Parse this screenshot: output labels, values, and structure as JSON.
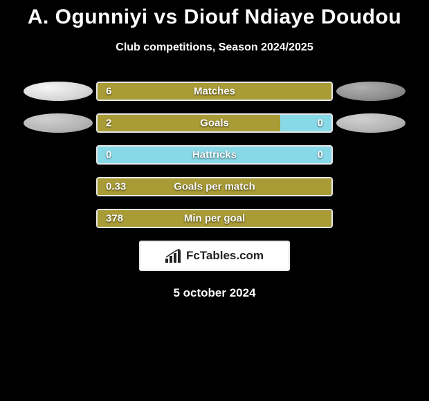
{
  "title": "A. Ogunniyi vs Diouf Ndiaye Doudou",
  "subtitle": "Club competitions, Season 2024/2025",
  "date": "5 october 2024",
  "logo_text": "FcTables.com",
  "colors": {
    "bar_primary": "#a99b35",
    "bar_secondary": "#87d9e8",
    "border": "#e8e8e8",
    "background": "#000000"
  },
  "stats": [
    {
      "label": "Matches",
      "left_value": "6",
      "right_value": "",
      "left_pct": 100,
      "right_pct": 0,
      "show_avatar_left": true,
      "show_avatar_right": true,
      "avatar_left_style": "light",
      "avatar_right_style": "dark"
    },
    {
      "label": "Goals",
      "left_value": "2",
      "right_value": "0",
      "left_pct": 78,
      "right_pct": 22,
      "show_avatar_left": true,
      "show_avatar_right": true,
      "avatar_left_style": "grayer",
      "avatar_right_style": "grayer"
    },
    {
      "label": "Hattricks",
      "left_value": "0",
      "right_value": "0",
      "left_pct": 0,
      "right_pct": 100,
      "show_avatar_left": false,
      "show_avatar_right": false
    },
    {
      "label": "Goals per match",
      "left_value": "0.33",
      "right_value": "",
      "left_pct": 100,
      "right_pct": 0,
      "show_avatar_left": false,
      "show_avatar_right": false
    },
    {
      "label": "Min per goal",
      "left_value": "378",
      "right_value": "",
      "left_pct": 100,
      "right_pct": 0,
      "show_avatar_left": false,
      "show_avatar_right": false
    }
  ]
}
